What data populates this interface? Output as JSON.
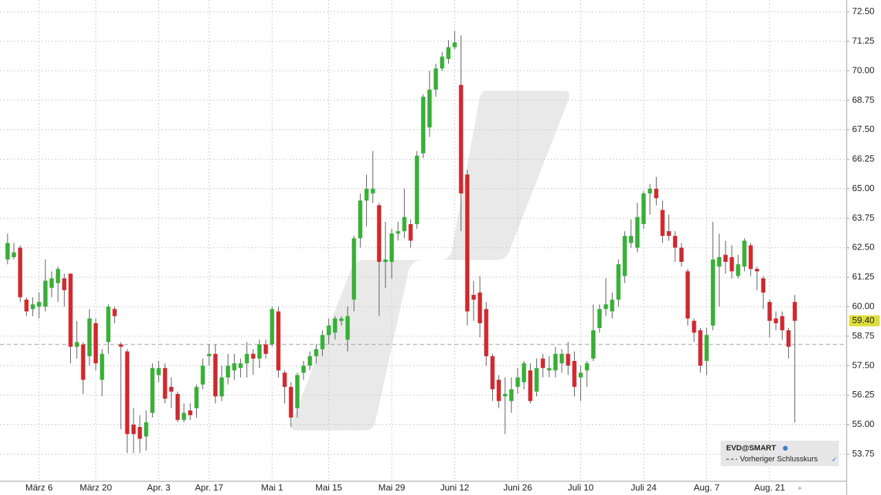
{
  "chart_data": {
    "type": "candlestick",
    "symbol": "EVD@SMART",
    "categories": [
      null,
      null,
      null,
      null,
      null,
      "März 6",
      null,
      null,
      null,
      null,
      null,
      null,
      null,
      null,
      "März 20",
      null,
      null,
      null,
      null,
      null,
      null,
      null,
      null,
      null,
      "Apr. 3",
      null,
      null,
      null,
      null,
      null,
      null,
      null,
      "Apr. 17",
      null,
      null,
      null,
      null,
      null,
      null,
      null,
      null,
      null,
      "Mai 1",
      null,
      null,
      null,
      null,
      null,
      null,
      null,
      null,
      "Mai 15",
      null,
      null,
      null,
      null,
      null,
      null,
      null,
      null,
      null,
      "Mai 29",
      null,
      null,
      null,
      null,
      null,
      null,
      null,
      null,
      null,
      "Juni 12",
      null,
      null,
      null,
      null,
      null,
      null,
      null,
      null,
      null,
      "Juni 26",
      null,
      null,
      null,
      null,
      null,
      null,
      null,
      null,
      null,
      "Juli 10",
      null,
      null,
      null,
      null,
      null,
      null,
      null,
      null,
      null,
      "Juli 24",
      null,
      null,
      null,
      null,
      null,
      null,
      null,
      null,
      null,
      "Aug. 7",
      null,
      null,
      null,
      null,
      null,
      null,
      null,
      null,
      null,
      "Aug. 21",
      null,
      null,
      null,
      null
    ],
    "open": [
      62.0,
      62.1,
      62.5,
      60.3,
      59.9,
      60.0,
      60.0,
      60.8,
      61.0,
      61.2,
      61.4,
      58.3,
      58.4,
      57.9,
      59.3,
      56.9,
      58.5,
      59.9,
      58.4,
      58.1,
      55.0,
      54.9,
      54.5,
      55.5,
      57.1,
      57.4,
      56.6,
      56.3,
      55.2,
      55.6,
      55.7,
      56.7,
      57.9,
      58.0,
      56.2,
      57.0,
      57.3,
      57.4,
      57.6,
      58.0,
      57.8,
      58.4,
      58.4,
      59.8,
      57.2,
      56.6,
      55.7,
      57.2,
      57.5,
      57.9,
      58.2,
      58.8,
      58.9,
      59.4,
      58.6,
      60.3,
      62.9,
      64.5,
      64.8,
      64.3,
      61.9,
      61.9,
      63.1,
      63.2,
      63.5,
      63.5,
      66.5,
      67.6,
      69.2,
      70.1,
      70.5,
      71.0,
      69.4,
      65.6,
      60.5,
      60.6,
      59.9,
      57.9,
      56.9,
      56.2,
      56.0,
      56.6,
      56.8,
      57.3,
      56.4,
      57.8,
      57.3,
      57.3,
      57.6,
      58.0,
      57.7,
      57.0,
      57.3,
      57.8,
      59.1,
      59.9,
      59.8,
      60.3,
      61.3,
      62.7,
      62.5,
      63.5,
      64.8,
      65.0,
      64.1,
      63.2,
      63.0,
      62.5,
      61.5,
      59.4,
      59.0,
      57.7,
      59.2,
      61.7,
      62.2,
      62.1,
      61.3,
      61.7,
      62.6,
      61.6,
      61.2,
      60.2,
      59.5,
      59.6,
      59.0,
      60.2
    ],
    "high": [
      63.1,
      62.7,
      62.6,
      60.4,
      60.4,
      60.6,
      62.0,
      61.5,
      61.7,
      61.4,
      61.4,
      59.4,
      58.5,
      59.9,
      59.5,
      58.2,
      60.1,
      60.0,
      58.5,
      58.2,
      55.7,
      55.4,
      55.6,
      57.6,
      57.7,
      57.6,
      57.0,
      56.4,
      55.9,
      55.9,
      56.7,
      57.8,
      58.4,
      58.4,
      57.5,
      58.0,
      58.0,
      57.8,
      58.5,
      58.2,
      58.6,
      58.6,
      60.0,
      60.0,
      57.3,
      56.8,
      57.2,
      57.7,
      58.1,
      58.4,
      59.0,
      59.5,
      59.6,
      59.6,
      60.0,
      63.0,
      64.8,
      65.6,
      66.6,
      64.4,
      63.6,
      63.3,
      63.6,
      65.0,
      63.7,
      66.6,
      69.0,
      70.0,
      70.3,
      70.8,
      71.3,
      71.7,
      71.5,
      65.8,
      61.1,
      61.3,
      60.2,
      58.0,
      57.1,
      57.0,
      57.0,
      57.4,
      57.7,
      57.6,
      57.8,
      58.0,
      57.9,
      58.3,
      58.2,
      58.5,
      58.1,
      57.5,
      57.7,
      60.1,
      60.1,
      61.2,
      60.6,
      62.0,
      63.2,
      63.7,
      64.4,
      64.9,
      65.2,
      65.5,
      64.5,
      63.9,
      63.2,
      62.7,
      61.6,
      59.5,
      59.1,
      59.1,
      63.6,
      63.1,
      62.8,
      62.6,
      62.2,
      62.9,
      62.7,
      61.7,
      61.3,
      60.3,
      59.8,
      59.8,
      59.1,
      60.5
    ],
    "low": [
      61.8,
      62.0,
      60.2,
      59.6,
      59.6,
      59.5,
      59.8,
      60.4,
      60.2,
      60.0,
      57.6,
      57.8,
      56.3,
      57.5,
      57.3,
      56.2,
      58.0,
      59.3,
      54.8,
      53.8,
      53.8,
      53.8,
      53.9,
      55.3,
      56.8,
      55.9,
      55.7,
      55.1,
      55.1,
      55.2,
      55.3,
      56.5,
      57.5,
      55.9,
      56.0,
      56.7,
      56.9,
      57.0,
      57.0,
      57.1,
      57.4,
      57.8,
      58.3,
      57.0,
      55.9,
      54.9,
      55.3,
      56.9,
      57.3,
      57.6,
      57.9,
      58.4,
      58.6,
      59.2,
      58.1,
      59.8,
      62.5,
      63.4,
      64.4,
      59.6,
      60.8,
      61.2,
      62.8,
      62.9,
      62.5,
      63.3,
      66.3,
      67.2,
      68.9,
      70.0,
      70.3,
      70.9,
      63.2,
      59.2,
      59.4,
      58.7,
      57.5,
      56.0,
      55.7,
      54.6,
      55.5,
      56.3,
      56.5,
      55.9,
      56.2,
      57.0,
      57.0,
      57.0,
      57.2,
      57.1,
      56.2,
      56.0,
      56.6,
      57.7,
      58.9,
      59.6,
      59.5,
      60.0,
      61.0,
      62.5,
      62.3,
      63.3,
      63.9,
      64.3,
      62.7,
      62.8,
      61.9,
      61.7,
      59.2,
      58.5,
      57.2,
      57.1,
      59.0,
      60.0,
      61.4,
      61.2,
      61.2,
      61.5,
      61.3,
      60.7,
      59.9,
      58.7,
      59.0,
      58.6,
      57.8,
      55.1
    ],
    "close": [
      62.7,
      62.3,
      60.4,
      59.8,
      60.1,
      60.2,
      61.1,
      61.2,
      61.6,
      60.7,
      58.3,
      58.5,
      56.9,
      59.5,
      57.6,
      58.0,
      60.0,
      59.6,
      58.3,
      54.6,
      54.6,
      54.4,
      55.1,
      57.4,
      57.4,
      56.1,
      56.4,
      55.2,
      55.5,
      55.4,
      56.6,
      57.5,
      58.0,
      56.2,
      57.0,
      57.5,
      57.6,
      57.6,
      58.0,
      57.8,
      58.4,
      58.0,
      59.9,
      57.3,
      56.6,
      55.3,
      57.1,
      57.5,
      57.9,
      58.2,
      58.8,
      59.2,
      59.5,
      59.5,
      59.6,
      62.9,
      64.5,
      65.0,
      65.0,
      61.9,
      62.0,
      63.1,
      63.2,
      63.8,
      62.8,
      66.4,
      68.9,
      69.2,
      70.1,
      70.6,
      71.0,
      71.2,
      64.8,
      59.8,
      60.3,
      59.3,
      57.9,
      56.5,
      56.0,
      56.3,
      56.5,
      57.0,
      57.6,
      56.0,
      57.4,
      57.4,
      57.4,
      58.0,
      58.0,
      57.5,
      56.6,
      57.2,
      57.6,
      59.0,
      59.9,
      60.1,
      60.3,
      61.8,
      63.0,
      63.0,
      63.8,
      64.8,
      65.0,
      64.6,
      63.0,
      63.0,
      62.5,
      61.9,
      59.5,
      58.9,
      57.5,
      58.8,
      62.0,
      62.1,
      61.9,
      61.5,
      61.8,
      62.8,
      61.6,
      61.5,
      60.6,
      59.4,
      59.3,
      59.0,
      58.3,
      59.4
    ],
    "up_color": "#34b233",
    "down_color": "#d7262c",
    "ylim": [
      52.6,
      73.0
    ],
    "yticks": [
      {
        "value": 53.75,
        "label": "53.75"
      },
      {
        "value": 55,
        "label": "55.00"
      },
      {
        "value": 56.25,
        "label": "56.25"
      },
      {
        "value": 57.5,
        "label": "57.50"
      },
      {
        "value": 58.75,
        "label": "58.75"
      },
      {
        "value": 60,
        "label": "60.00"
      },
      {
        "value": 61.25,
        "label": "61.25"
      },
      {
        "value": 62.5,
        "label": "62.50"
      },
      {
        "value": 63.75,
        "label": "63.75"
      },
      {
        "value": 65,
        "label": "65.00"
      },
      {
        "value": 66.25,
        "label": "66.25"
      },
      {
        "value": 67.5,
        "label": "67.50"
      },
      {
        "value": 68.75,
        "label": "68.75"
      },
      {
        "value": 70,
        "label": "70.00"
      },
      {
        "value": 71.25,
        "label": "71.25"
      },
      {
        "value": 72.5,
        "label": "72.50"
      }
    ],
    "last_price": {
      "value": 59.4,
      "label": "59.40",
      "color": "#dede3a"
    },
    "prev_close": {
      "value": 58.4,
      "name": "Vorheriger Schlusskurs"
    },
    "grid": true
  }
}
